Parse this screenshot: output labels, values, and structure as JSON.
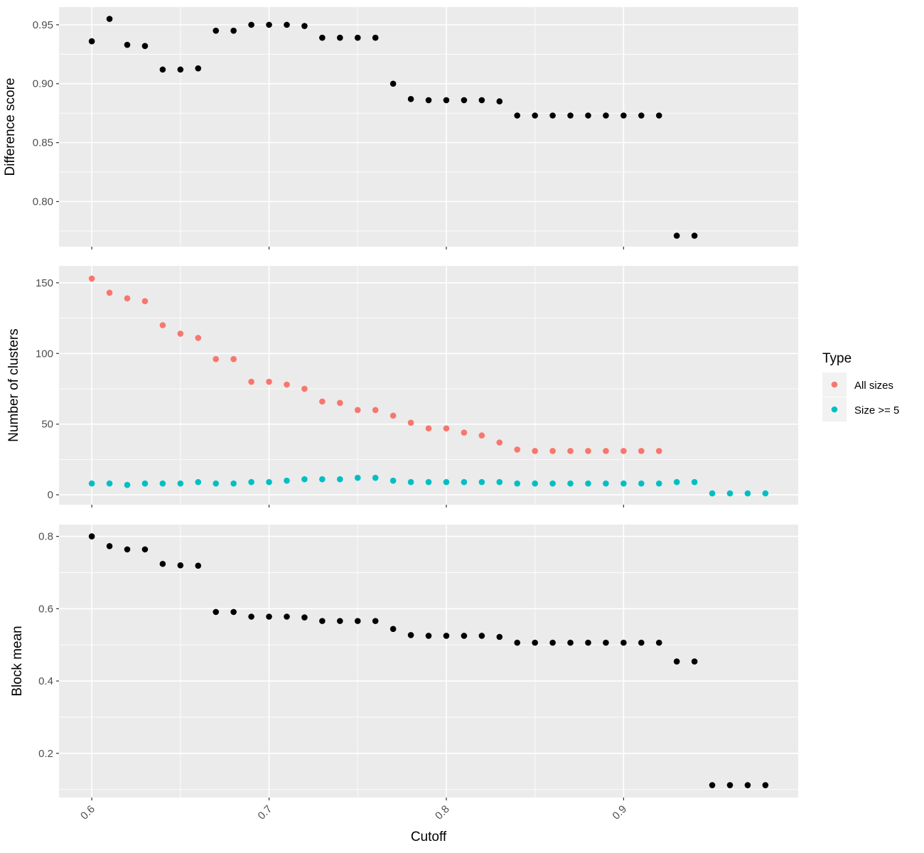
{
  "chart_data": {
    "type": "scatter",
    "xlabel": "Cutoff",
    "x_ticks": [
      "0.6",
      "0.7",
      "0.8",
      "0.9"
    ],
    "x_tick_values": [
      0.6,
      0.7,
      0.8,
      0.9
    ],
    "xlim": [
      0.5815,
      0.9985
    ],
    "grid": true,
    "legend": {
      "title": "Type",
      "position": "right",
      "entries": [
        {
          "label": "All sizes",
          "color": "#F8766D"
        },
        {
          "label": "Size >= 5",
          "color": "#00BFC4"
        }
      ]
    },
    "panels": [
      {
        "ylabel": "Difference score",
        "ylim": [
          0.7617,
          0.965
        ],
        "y_ticks": [
          "0.80",
          "0.85",
          "0.90",
          "0.95"
        ],
        "y_tick_values": [
          0.8,
          0.85,
          0.9,
          0.95
        ],
        "series": [
          {
            "color": "#000000",
            "x": [
              0.6,
              0.61,
              0.62,
              0.63,
              0.64,
              0.65,
              0.66,
              0.67,
              0.68,
              0.69,
              0.7,
              0.71,
              0.72,
              0.73,
              0.74,
              0.75,
              0.76,
              0.77,
              0.78,
              0.79,
              0.8,
              0.81,
              0.82,
              0.83,
              0.84,
              0.85,
              0.86,
              0.87,
              0.88,
              0.89,
              0.9,
              0.91,
              0.92,
              0.93,
              0.94
            ],
            "y": [
              0.936,
              0.955,
              0.933,
              0.932,
              0.912,
              0.912,
              0.913,
              0.945,
              0.945,
              0.95,
              0.95,
              0.95,
              0.949,
              0.939,
              0.939,
              0.939,
              0.939,
              0.9,
              0.887,
              0.886,
              0.886,
              0.886,
              0.886,
              0.885,
              0.873,
              0.873,
              0.873,
              0.873,
              0.873,
              0.873,
              0.873,
              0.873,
              0.873,
              0.771,
              0.771
            ]
          }
        ]
      },
      {
        "ylabel": "Number of clusters",
        "ylim": [
          -7.0,
          162.0
        ],
        "y_ticks": [
          "0",
          "50",
          "100",
          "150"
        ],
        "y_tick_values": [
          0,
          50,
          100,
          150
        ],
        "series": [
          {
            "name": "All sizes",
            "color": "#F8766D",
            "x": [
              0.6,
              0.61,
              0.62,
              0.63,
              0.64,
              0.65,
              0.66,
              0.67,
              0.68,
              0.69,
              0.7,
              0.71,
              0.72,
              0.73,
              0.74,
              0.75,
              0.76,
              0.77,
              0.78,
              0.79,
              0.8,
              0.81,
              0.82,
              0.83,
              0.84,
              0.85,
              0.86,
              0.87,
              0.88,
              0.89,
              0.9,
              0.91,
              0.92
            ],
            "y": [
              153,
              143,
              139,
              137,
              120,
              114,
              111,
              96,
              96,
              80,
              80,
              78,
              75,
              66,
              65,
              60,
              60,
              56,
              51,
              47,
              47,
              44,
              42,
              37,
              32,
              31,
              31,
              31,
              31,
              31,
              31,
              31,
              31
            ]
          },
          {
            "name": "Size >= 5",
            "color": "#00BFC4",
            "x": [
              0.6,
              0.61,
              0.62,
              0.63,
              0.64,
              0.65,
              0.66,
              0.67,
              0.68,
              0.69,
              0.7,
              0.71,
              0.72,
              0.73,
              0.74,
              0.75,
              0.76,
              0.77,
              0.78,
              0.79,
              0.8,
              0.81,
              0.82,
              0.83,
              0.84,
              0.85,
              0.86,
              0.87,
              0.88,
              0.89,
              0.9,
              0.91,
              0.92,
              0.93,
              0.94,
              0.95,
              0.96,
              0.97,
              0.98
            ],
            "y": [
              8,
              8,
              7,
              8,
              8,
              8,
              9,
              8,
              8,
              9,
              9,
              10,
              11,
              11,
              11,
              12,
              12,
              10,
              9,
              9,
              9,
              9,
              9,
              9,
              8,
              8,
              8,
              8,
              8,
              8,
              8,
              8,
              8,
              9,
              9,
              1,
              1,
              1,
              1
            ]
          }
        ]
      },
      {
        "ylabel": "Block mean",
        "ylim": [
          0.0777,
          0.8326
        ],
        "y_ticks": [
          "0.2",
          "0.4",
          "0.6",
          "0.8"
        ],
        "y_tick_values": [
          0.2,
          0.4,
          0.6,
          0.8
        ],
        "series": [
          {
            "color": "#000000",
            "x": [
              0.6,
              0.61,
              0.62,
              0.63,
              0.64,
              0.65,
              0.66,
              0.67,
              0.68,
              0.69,
              0.7,
              0.71,
              0.72,
              0.73,
              0.74,
              0.75,
              0.76,
              0.77,
              0.78,
              0.79,
              0.8,
              0.81,
              0.82,
              0.83,
              0.84,
              0.85,
              0.86,
              0.87,
              0.88,
              0.89,
              0.9,
              0.91,
              0.92,
              0.93,
              0.94,
              0.95,
              0.96,
              0.97,
              0.98
            ],
            "y": [
              0.8,
              0.773,
              0.764,
              0.764,
              0.724,
              0.72,
              0.719,
              0.591,
              0.591,
              0.578,
              0.578,
              0.578,
              0.576,
              0.566,
              0.566,
              0.566,
              0.566,
              0.544,
              0.527,
              0.525,
              0.525,
              0.525,
              0.525,
              0.522,
              0.506,
              0.506,
              0.506,
              0.506,
              0.506,
              0.506,
              0.506,
              0.506,
              0.506,
              0.454,
              0.454,
              0.112,
              0.112,
              0.112,
              0.112
            ]
          }
        ]
      }
    ]
  }
}
